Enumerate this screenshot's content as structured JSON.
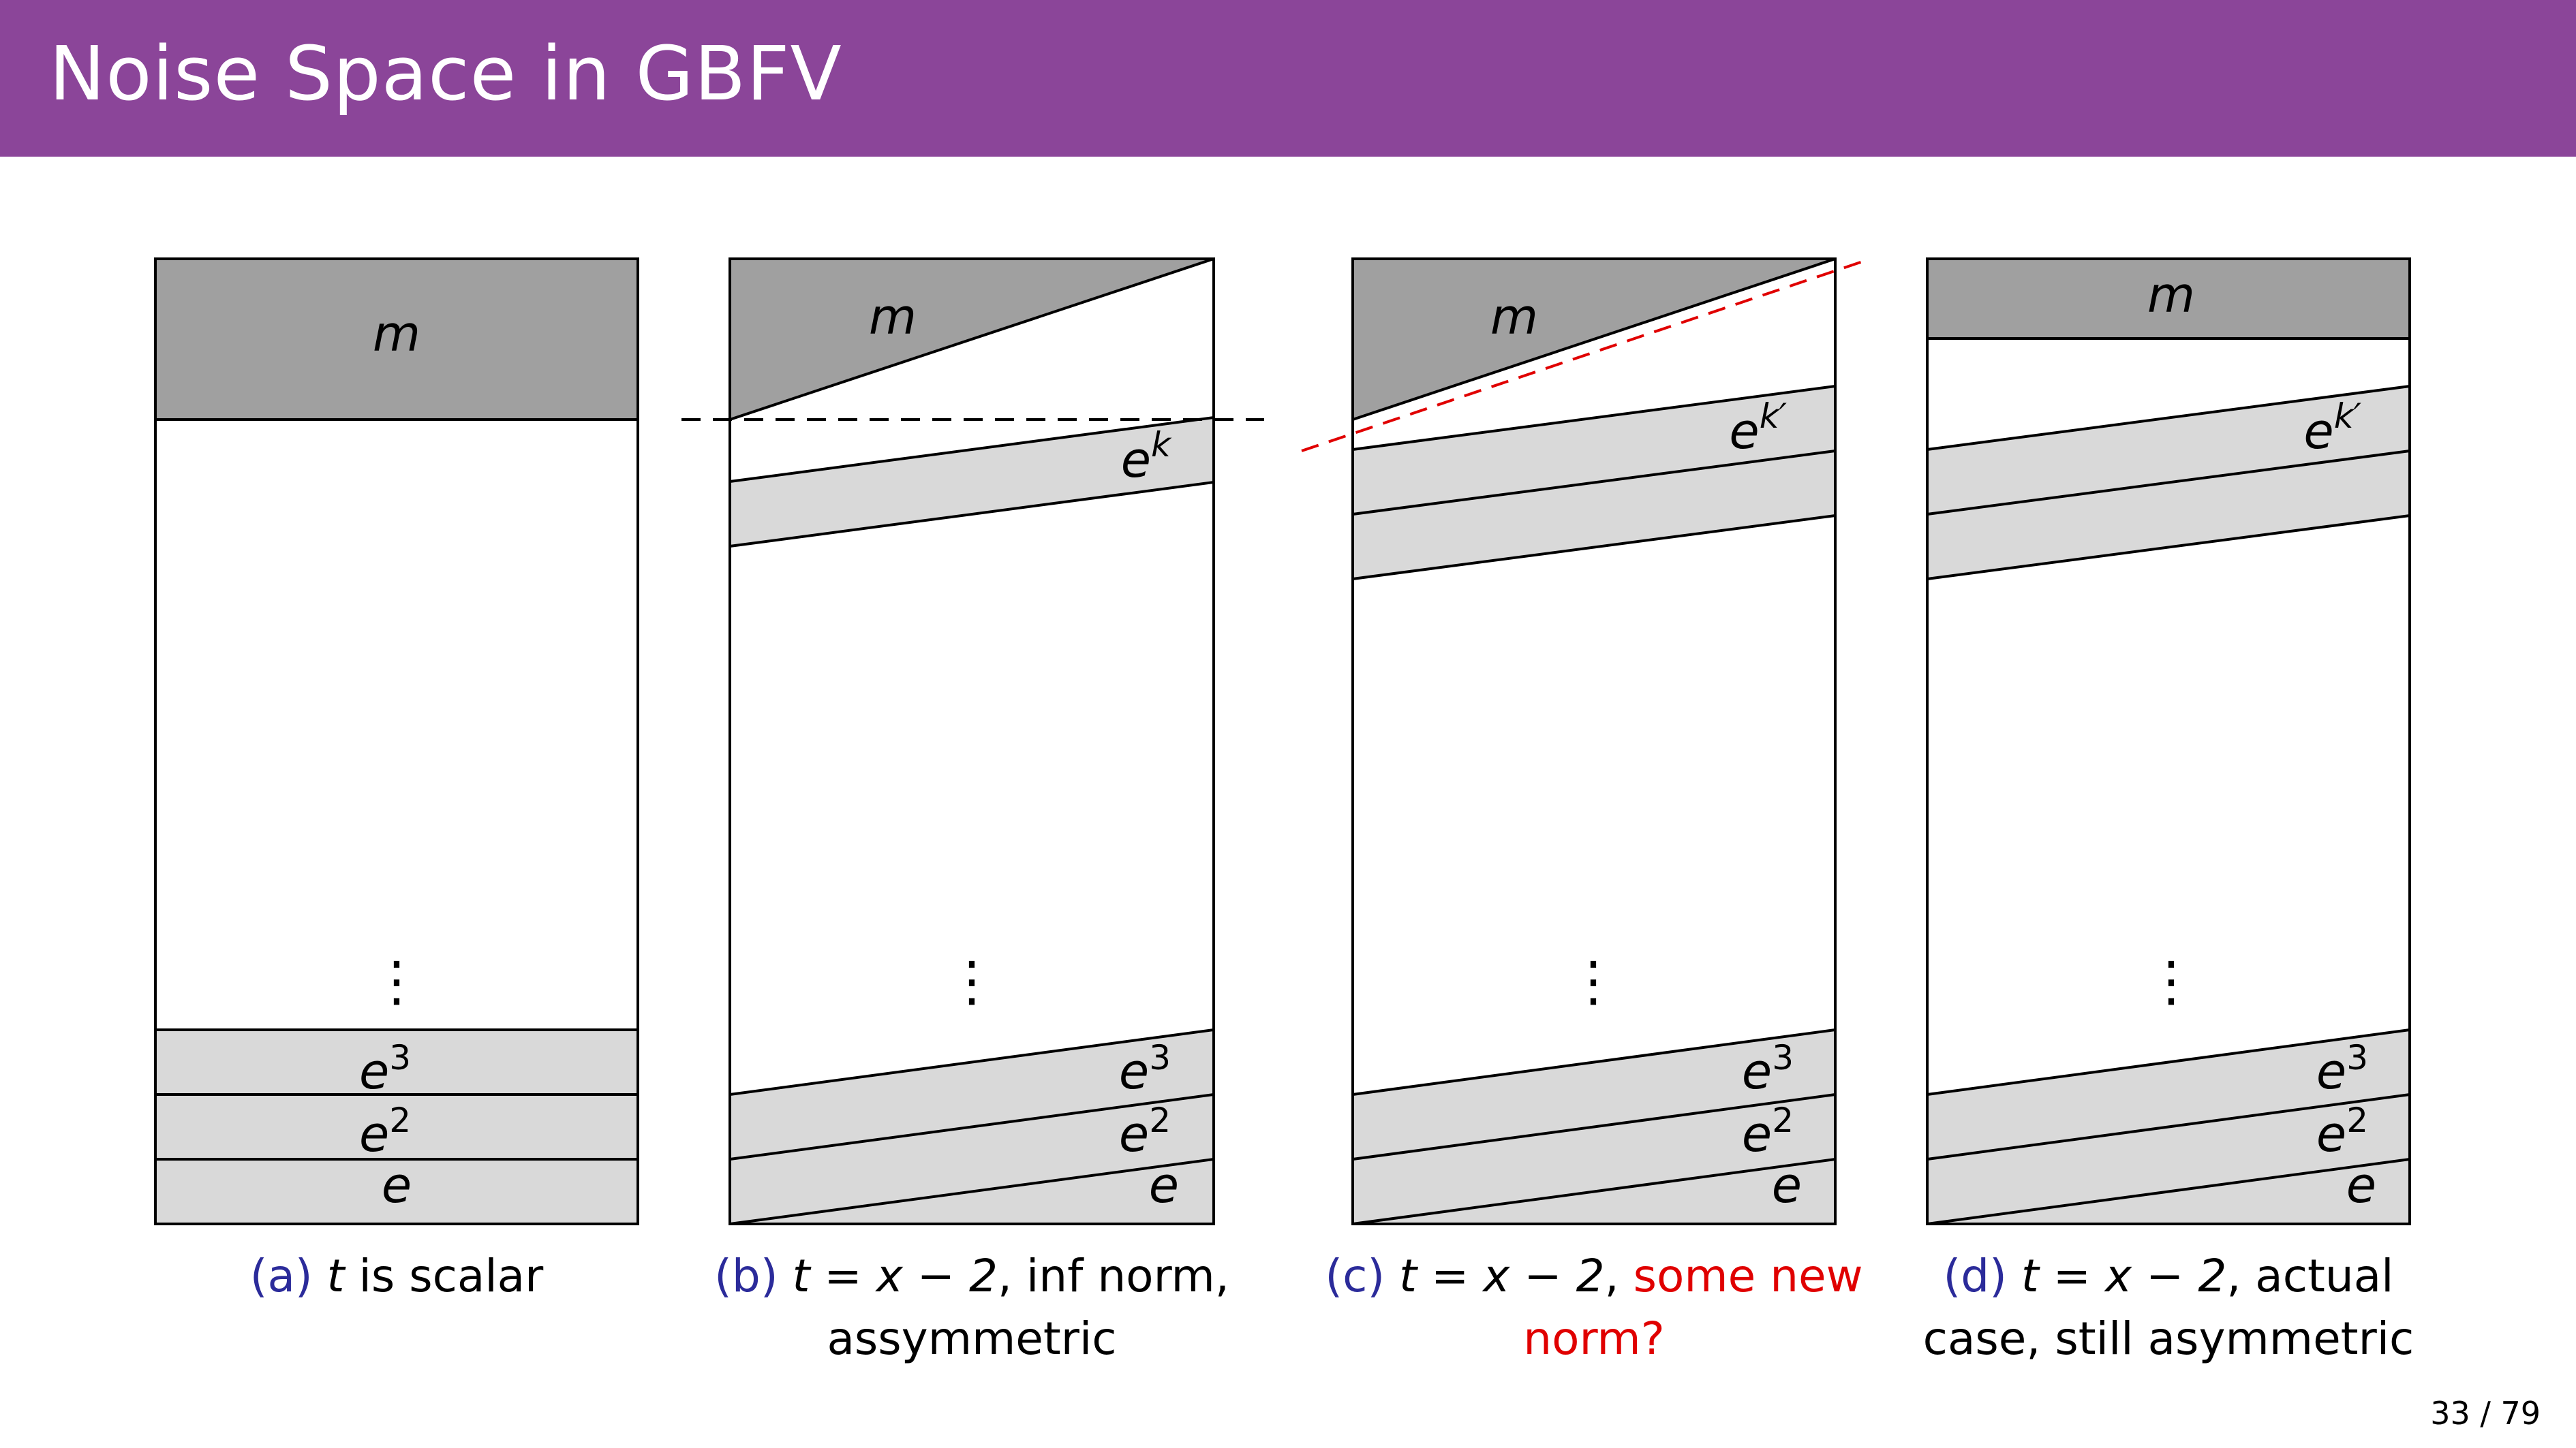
{
  "slide": {
    "title": "Noise Space in GBFV",
    "page_number": "33 / 79"
  },
  "labels": {
    "m": "m",
    "e": "e",
    "e2_base": "e",
    "e2_sup": "2",
    "e3_base": "e",
    "e3_sup": "3",
    "ek_base": "e",
    "ek_sup": "k",
    "ekp_sup": "k′",
    "vdots": "⋮"
  },
  "captions": {
    "a": {
      "letter": "(a)",
      "math": "t",
      "text": " is scalar"
    },
    "b": {
      "letter": "(b)",
      "math": "t = x − 2",
      "text": ", inf norm, assymmetric"
    },
    "c": {
      "letter": "(c)",
      "math": "t = x − 2",
      "text": ", ",
      "red": "some new norm?"
    },
    "d": {
      "letter": "(d)",
      "math": "t = x − 2",
      "text": ", actual case, still asymmetric"
    }
  },
  "colors": {
    "title_bar": "#8b4599",
    "dark_fill": "#a0a0a0",
    "light_fill": "#d9d9d9",
    "caption_letter": "#2b2b9a",
    "highlight_red": "#e00000"
  }
}
